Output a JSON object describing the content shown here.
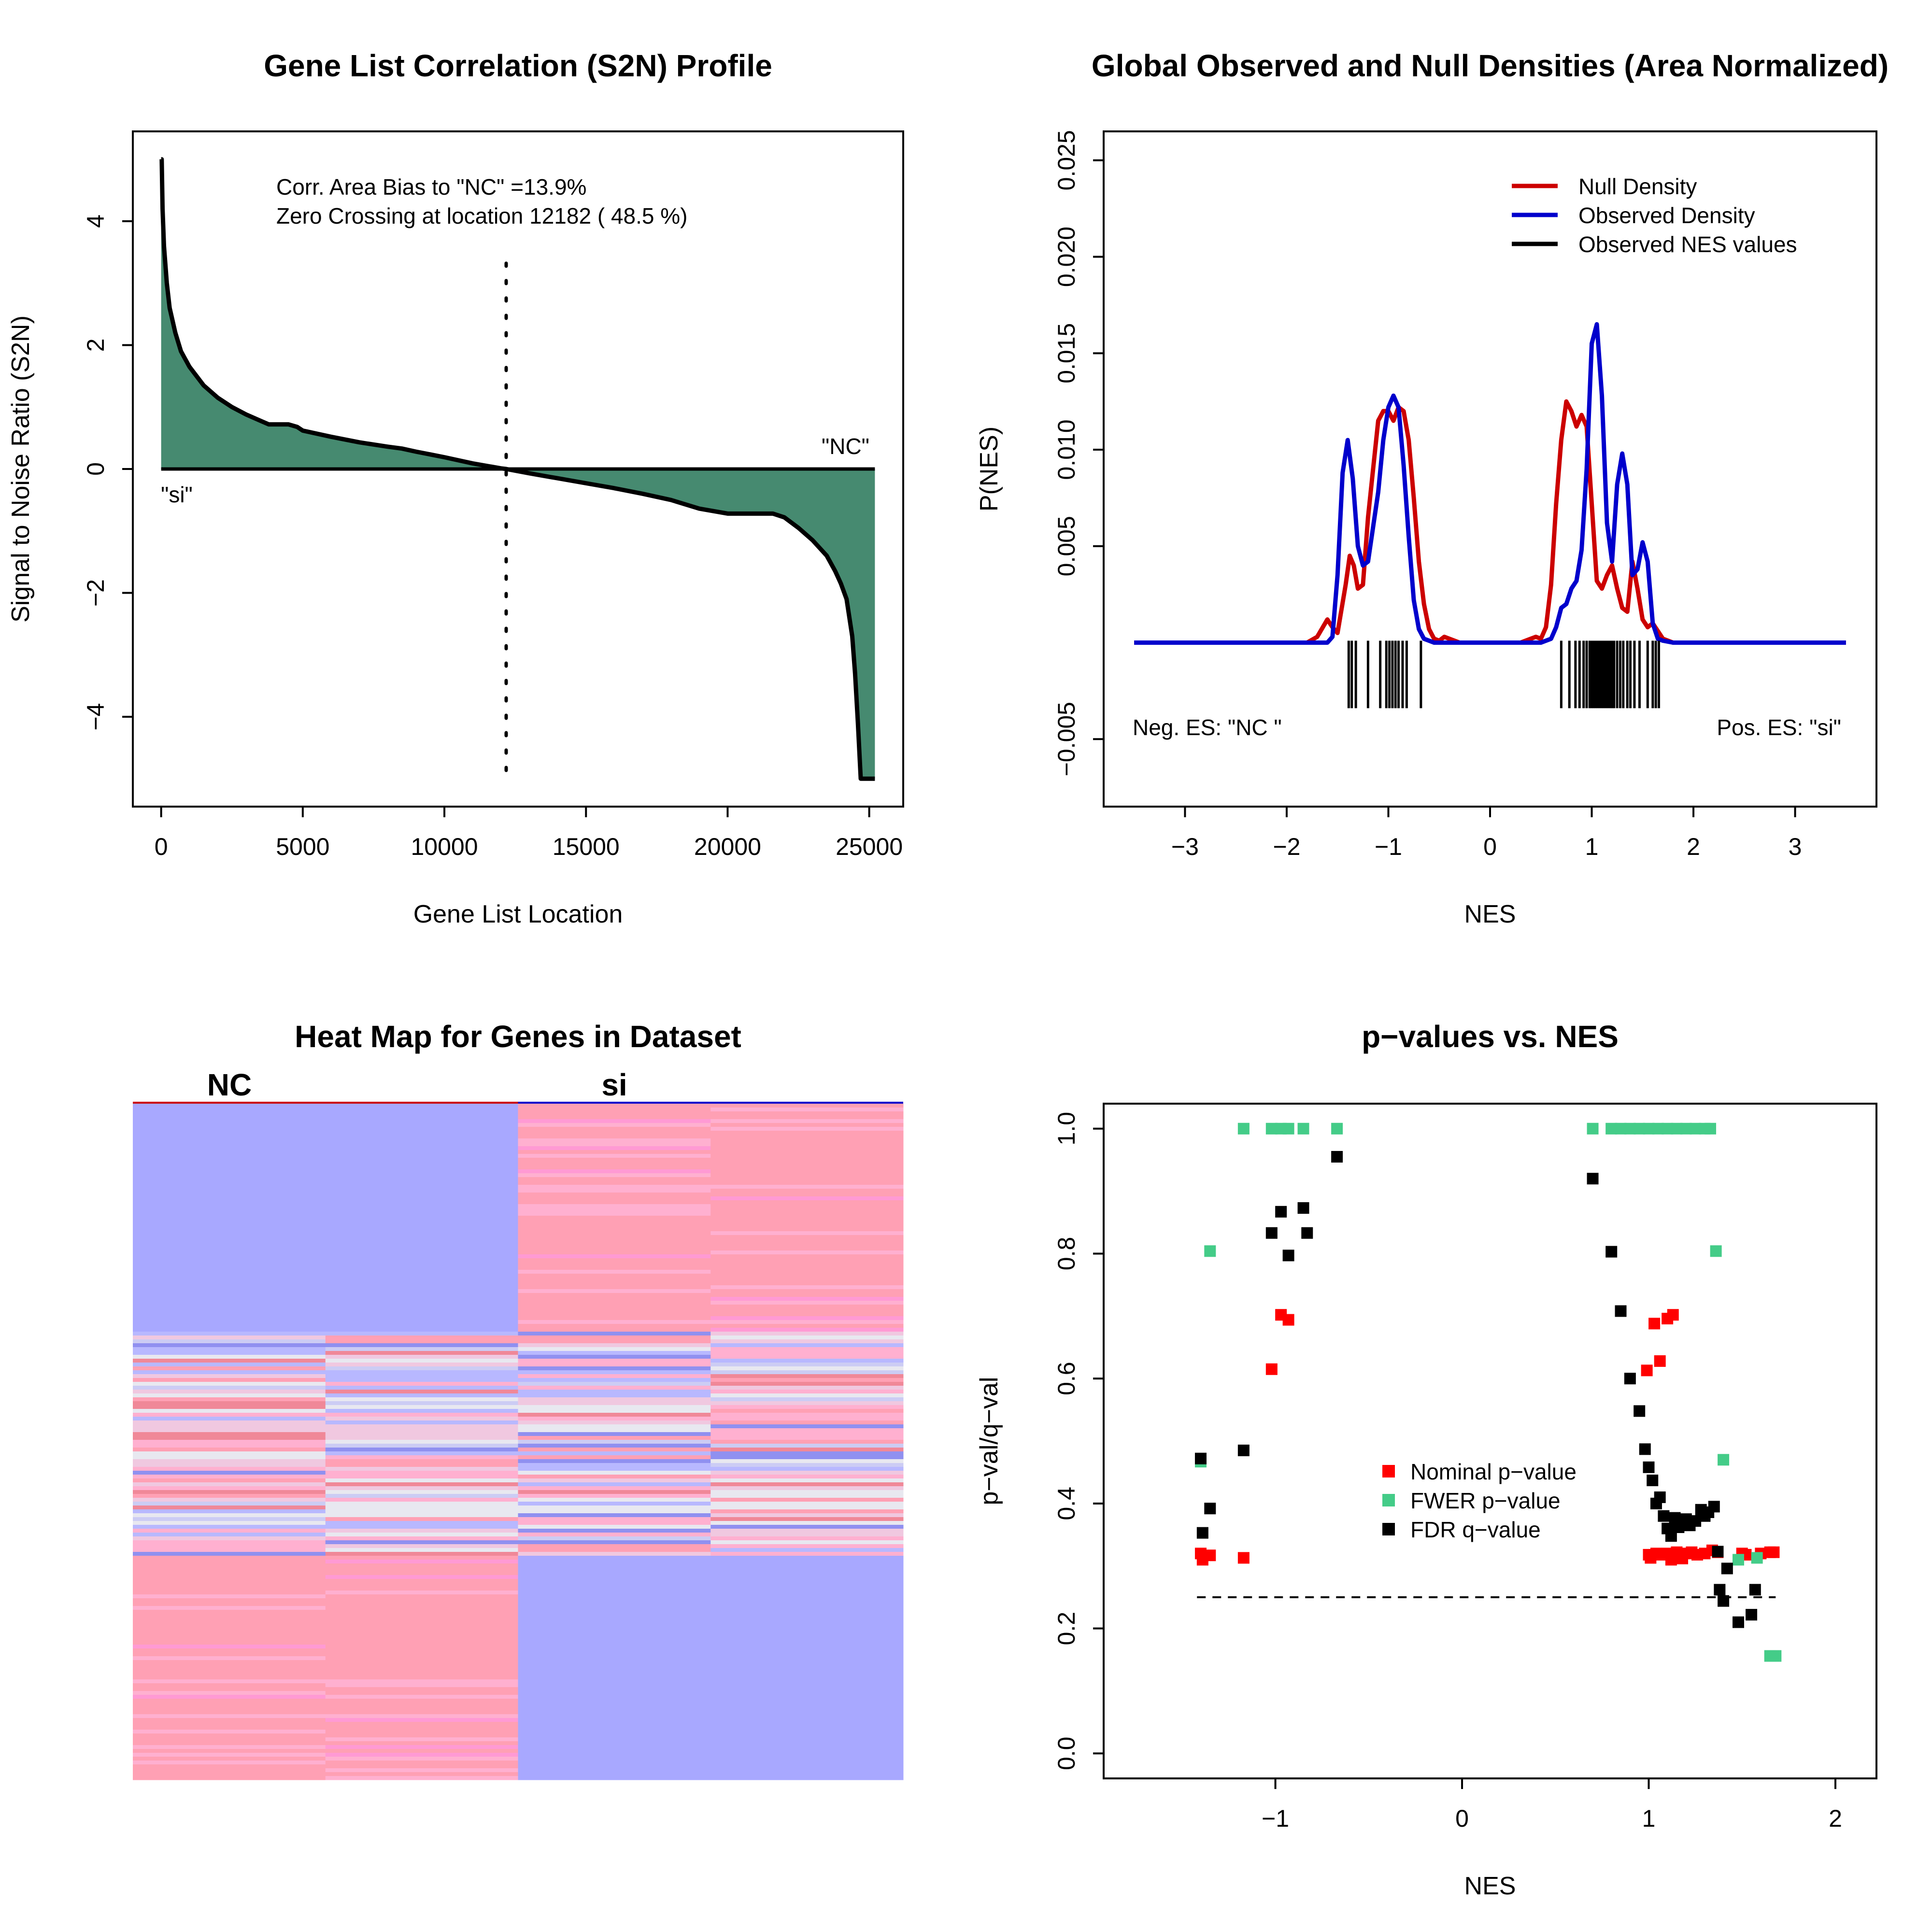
{
  "chart_data": [
    {
      "id": "s2n",
      "type": "area",
      "title": "Gene List Correlation (S2N) Profile",
      "xlabel": "Gene List Location",
      "ylabel": "Signal to Noise Ratio (S2N)",
      "xlim": [
        -1000,
        26200
      ],
      "ylim": [
        -5.45,
        5.45
      ],
      "xticks": [
        0,
        5000,
        10000,
        15000,
        20000,
        25000
      ],
      "xtick_labels": [
        "0",
        "5000",
        "10000",
        "15000",
        "20000",
        "25000"
      ],
      "yticks": [
        -4,
        -2,
        0,
        2,
        4
      ],
      "ytick_labels": [
        "−4",
        "−2",
        "0",
        "2",
        "4"
      ],
      "curve": {
        "x": [
          0,
          20,
          50,
          100,
          200,
          300,
          400,
          500,
          700,
          1000,
          1500,
          2000,
          2500,
          3000,
          3500,
          3800,
          4000,
          4500,
          4800,
          5000,
          6000,
          7000,
          8000,
          8500,
          9000,
          10000,
          11000,
          12000,
          12182,
          13000,
          14000,
          15000,
          16000,
          17000,
          18000,
          19000,
          20000,
          21000,
          21600,
          22000,
          22500,
          23000,
          23500,
          23800,
          24000,
          24200,
          24400,
          24500,
          24600,
          24700,
          24800,
          25000,
          25200
        ],
        "y": [
          5.0,
          5.0,
          4.2,
          3.6,
          3.0,
          2.6,
          2.4,
          2.2,
          1.9,
          1.65,
          1.35,
          1.15,
          1.0,
          0.88,
          0.78,
          0.72,
          0.72,
          0.72,
          0.68,
          0.62,
          0.52,
          0.43,
          0.36,
          0.33,
          0.28,
          0.19,
          0.09,
          0.01,
          0.0,
          -0.07,
          -0.15,
          -0.23,
          -0.31,
          -0.4,
          -0.5,
          -0.64,
          -0.72,
          -0.72,
          -0.72,
          -0.78,
          -0.95,
          -1.15,
          -1.4,
          -1.65,
          -1.85,
          -2.1,
          -2.7,
          -3.3,
          -4.1,
          -5.0,
          -5.0,
          -5.0,
          -5.0
        ]
      },
      "fill_color": "#468a70",
      "zero_crossing": 12182,
      "annotations": {
        "bias": "Corr. Area Bias to \"NC\" =13.9%",
        "zero": "Zero Crossing at location  12182  ( 48.5  %)",
        "label_nc": "\"NC\"",
        "label_si": "\"si\""
      }
    },
    {
      "id": "density",
      "type": "line",
      "title": "Global Observed and Null Densities (Area Normalized)",
      "xlabel": "NES",
      "ylabel": "P(NES)",
      "xlim": [
        -3.8,
        3.8
      ],
      "ylim": [
        -0.0085,
        0.0265
      ],
      "xticks": [
        -3,
        -2,
        -1,
        0,
        1,
        2,
        3
      ],
      "xtick_labels": [
        "−3",
        "−2",
        "−1",
        "0",
        "1",
        "2",
        "3"
      ],
      "yticks": [
        -0.005,
        0.005,
        0.01,
        0.015,
        0.02,
        0.025
      ],
      "ytick_labels": [
        "−0.005",
        "0.005",
        "0.010",
        "0.015",
        "0.020",
        "0.025"
      ],
      "series": [
        {
          "name": "Null Density",
          "color": "#cc0000",
          "x": [
            -3.5,
            -1.8,
            -1.7,
            -1.6,
            -1.55,
            -1.5,
            -1.42,
            -1.38,
            -1.34,
            -1.3,
            -1.25,
            -1.2,
            -1.1,
            -1.05,
            -1.0,
            -0.95,
            -0.9,
            -0.85,
            -0.8,
            -0.75,
            -0.7,
            -0.65,
            -0.6,
            -0.55,
            -0.5,
            -0.45,
            -0.4,
            -0.35,
            -0.3,
            -0.2,
            0.2,
            0.3,
            0.4,
            0.45,
            0.5,
            0.55,
            0.6,
            0.65,
            0.7,
            0.75,
            0.8,
            0.85,
            0.9,
            0.95,
            1.0,
            1.05,
            1.1,
            1.15,
            1.2,
            1.25,
            1.3,
            1.35,
            1.4,
            1.45,
            1.5,
            1.55,
            1.6,
            1.65,
            1.7,
            1.8,
            3.5
          ],
          "y": [
            0,
            0,
            0.0003,
            0.0012,
            0.0008,
            0.0005,
            0.003,
            0.0045,
            0.004,
            0.0028,
            0.003,
            0.0065,
            0.0115,
            0.012,
            0.012,
            0.0115,
            0.0122,
            0.012,
            0.0105,
            0.0075,
            0.0042,
            0.002,
            0.0007,
            0.0002,
            0.0001,
            0.0003,
            0.0002,
            0.0001,
            0,
            0,
            0,
            0,
            0.0002,
            0.0003,
            0.0002,
            0.0008,
            0.003,
            0.0072,
            0.0105,
            0.0125,
            0.012,
            0.0112,
            0.0118,
            0.0112,
            0.0072,
            0.0032,
            0.0028,
            0.0035,
            0.004,
            0.0028,
            0.0018,
            0.0016,
            0.0042,
            0.0028,
            0.0012,
            0.0008,
            0.001,
            0.0006,
            0.0002,
            0,
            0
          ]
        },
        {
          "name": "Observed Density",
          "color": "#0000cc",
          "x": [
            -3.5,
            -1.6,
            -1.55,
            -1.5,
            -1.45,
            -1.4,
            -1.35,
            -1.3,
            -1.25,
            -1.2,
            -1.1,
            -1.05,
            -1.0,
            -0.95,
            -0.9,
            -0.85,
            -0.8,
            -0.75,
            -0.7,
            -0.65,
            -0.6,
            -0.55,
            -0.5,
            -0.45,
            0.5,
            0.6,
            0.65,
            0.7,
            0.75,
            0.8,
            0.85,
            0.9,
            0.95,
            1.0,
            1.05,
            1.1,
            1.15,
            1.2,
            1.25,
            1.3,
            1.35,
            1.4,
            1.45,
            1.5,
            1.55,
            1.6,
            1.65,
            1.7,
            1.8,
            3.5
          ],
          "y": [
            0,
            0,
            0.0003,
            0.0035,
            0.0088,
            0.0105,
            0.0085,
            0.005,
            0.004,
            0.0042,
            0.0078,
            0.0105,
            0.0122,
            0.0128,
            0.0122,
            0.0092,
            0.0055,
            0.0022,
            0.0007,
            0.0002,
            0.0001,
            0,
            0,
            0,
            0,
            0.0002,
            0.0008,
            0.0018,
            0.002,
            0.0028,
            0.0032,
            0.0048,
            0.009,
            0.0155,
            0.0165,
            0.0128,
            0.0062,
            0.0042,
            0.0082,
            0.0098,
            0.0082,
            0.0035,
            0.0038,
            0.0052,
            0.0042,
            0.001,
            0.0002,
            0.0001,
            0,
            0
          ]
        }
      ],
      "rug_label": "Observed NES values",
      "rug_color": "#000000",
      "rug_values": [
        -1.39,
        -1.36,
        -1.32,
        -1.2,
        -1.08,
        -1.02,
        -0.99,
        -0.96,
        -0.93,
        -0.9,
        -0.86,
        -0.82,
        -0.68,
        0.7,
        0.78,
        0.84,
        0.88,
        0.92,
        0.95,
        0.98,
        1.0,
        1.02,
        1.04,
        1.06,
        1.08,
        1.1,
        1.12,
        1.14,
        1.16,
        1.18,
        1.2,
        1.22,
        1.25,
        1.28,
        1.31,
        1.35,
        1.38,
        1.42,
        1.47,
        1.55,
        1.6,
        1.63,
        1.66
      ],
      "legend_position": "top-right",
      "annotations": {
        "neg": "Neg. ES: \"NC \"",
        "pos": "Pos. ES: \"si\""
      }
    },
    {
      "id": "heatmap",
      "type": "heatmap",
      "title": "Heat Map for Genes in Dataset",
      "group_labels": [
        "NC",
        "si"
      ],
      "group_colors": [
        "#cc0000",
        "#0000cc"
      ],
      "palette": [
        "#a8a8ff",
        "#b8b8ff",
        "#ccccf4",
        "#e8e8f0",
        "#f0c8e0",
        "#ffb0d0",
        "#ffa0b4",
        "#f08898",
        "#9090f0",
        "#ff9ad4"
      ],
      "block_fractions": [
        0.333,
        0.333,
        0.334
      ],
      "blocks": [
        {
          "name": "top",
          "NC": "blue",
          "si": "red"
        },
        {
          "name": "middle",
          "NC": "mixed",
          "si": "mixed"
        },
        {
          "name": "bottom",
          "NC": "red",
          "si": "blue"
        }
      ]
    },
    {
      "id": "pvals",
      "type": "scatter",
      "title": "p−values vs. NES",
      "xlabel": "NES",
      "ylabel": "p−val/q−val",
      "xlim": [
        -1.92,
        2.22
      ],
      "ylim": [
        -0.04,
        1.04
      ],
      "xticks": [
        -1,
        0,
        1,
        2
      ],
      "xtick_labels": [
        "−1",
        "0",
        "1",
        "2"
      ],
      "yticks": [
        0.0,
        0.2,
        0.4,
        0.6,
        0.8,
        1.0
      ],
      "ytick_labels": [
        "0.0",
        "0.2",
        "0.4",
        "0.6",
        "0.8",
        "1.0"
      ],
      "threshold": 0.25,
      "threshold_range": [
        -1.42,
        1.68
      ],
      "legend_position": "center",
      "series": [
        {
          "name": "Nominal p−value",
          "color": "#ff0000",
          "x": [
            -1.4,
            -1.39,
            -1.35,
            -1.17,
            -1.02,
            -0.97,
            -0.93,
            0.99,
            1.03,
            1.1,
            1.13,
            1.06,
            1.0,
            1.01,
            1.04,
            1.07,
            1.1,
            1.12,
            1.15,
            1.18,
            1.2,
            1.23,
            1.26,
            1.3,
            1.34,
            1.37,
            1.5,
            1.52,
            1.6,
            1.65,
            1.67
          ],
          "y": [
            0.32,
            0.31,
            0.317,
            0.313,
            0.615,
            0.702,
            0.694,
            0.613,
            0.688,
            0.696,
            0.702,
            0.628,
            0.318,
            0.313,
            0.32,
            0.318,
            0.32,
            0.31,
            0.322,
            0.312,
            0.32,
            0.322,
            0.318,
            0.32,
            0.325,
            0.322,
            0.32,
            0.318,
            0.32,
            0.322,
            0.322
          ]
        },
        {
          "name": "FWER p−value",
          "color": "#44cc88",
          "x": [
            -1.4,
            -1.35,
            -1.17,
            -1.02,
            -0.97,
            -0.93,
            -0.85,
            -0.67,
            0.7,
            0.8,
            0.85,
            0.9,
            0.95,
            1.0,
            1.05,
            1.1,
            1.15,
            1.2,
            1.25,
            1.3,
            1.33,
            1.36,
            1.4,
            1.48,
            1.58,
            1.65,
            1.68
          ],
          "y": [
            0.467,
            0.804,
            1.0,
            1.0,
            1.0,
            1.0,
            1.0,
            1.0,
            1.0,
            1.0,
            1.0,
            1.0,
            1.0,
            1.0,
            1.0,
            1.0,
            1.0,
            1.0,
            1.0,
            1.0,
            1.0,
            0.804,
            0.47,
            0.31,
            0.313,
            0.156,
            0.156
          ]
        },
        {
          "name": "FDR q−value",
          "color": "#000000",
          "x": [
            -1.4,
            -1.39,
            -1.35,
            -1.17,
            -1.02,
            -0.97,
            -0.93,
            -0.85,
            -0.83,
            -0.67,
            0.7,
            0.8,
            0.85,
            0.9,
            0.95,
            0.98,
            1.0,
            1.02,
            1.04,
            1.06,
            1.08,
            1.1,
            1.12,
            1.14,
            1.16,
            1.18,
            1.2,
            1.22,
            1.25,
            1.28,
            1.3,
            1.32,
            1.35,
            1.37,
            1.38,
            1.4,
            1.42,
            1.48,
            1.55,
            1.57
          ],
          "y": [
            0.472,
            0.353,
            0.392,
            0.485,
            0.833,
            0.867,
            0.797,
            0.873,
            0.833,
            0.955,
            0.92,
            0.803,
            0.708,
            0.6,
            0.548,
            0.487,
            0.458,
            0.437,
            0.4,
            0.41,
            0.38,
            0.36,
            0.348,
            0.377,
            0.362,
            0.37,
            0.375,
            0.365,
            0.372,
            0.39,
            0.38,
            0.386,
            0.395,
            0.323,
            0.262,
            0.244,
            0.296,
            0.21,
            0.222,
            0.262
          ]
        }
      ]
    }
  ]
}
